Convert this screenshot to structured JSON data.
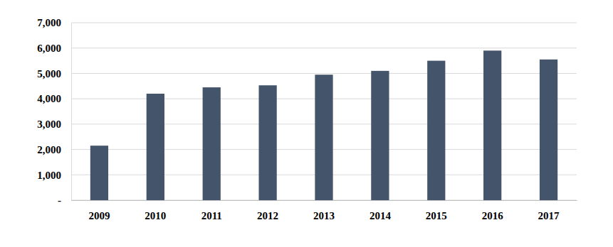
{
  "chart_data": {
    "type": "bar",
    "categories": [
      "2009",
      "2010",
      "2011",
      "2012",
      "2013",
      "2014",
      "2015",
      "2016",
      "2017"
    ],
    "values": [
      2150,
      4200,
      4450,
      4530,
      4950,
      5100,
      5500,
      5900,
      5550
    ],
    "color": "#44546a",
    "ylim": [
      0,
      7000
    ],
    "yticks": [
      {
        "value": 0,
        "label": "-"
      },
      {
        "value": 1000,
        "label": "1,000"
      },
      {
        "value": 2000,
        "label": "2,000"
      },
      {
        "value": 3000,
        "label": "3,000"
      },
      {
        "value": 4000,
        "label": "4,000"
      },
      {
        "value": 5000,
        "label": "5,000"
      },
      {
        "value": 6000,
        "label": "6,000"
      },
      {
        "value": 7000,
        "label": "7,000"
      }
    ],
    "grid": true
  }
}
